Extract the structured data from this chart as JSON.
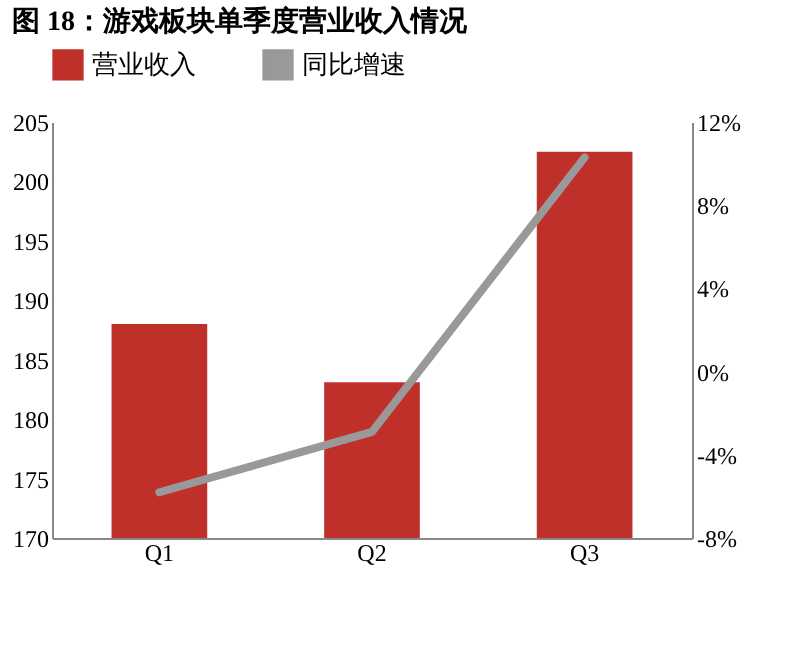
{
  "chart_data": {
    "type": "bar",
    "title": "图 18：游戏板块单季度营业收入情况",
    "categories": [
      "Q1",
      "Q2",
      "Q3"
    ],
    "series": [
      {
        "name": "营业收入",
        "type": "bar",
        "color": "#c0302b",
        "values": [
          188,
          183.1,
          202.5
        ]
      },
      {
        "name": "同比增速",
        "type": "line",
        "axis": "y2",
        "color": "#999999",
        "values": [
          -5.8,
          -2.9,
          10.3
        ]
      }
    ],
    "ylim": [
      170,
      205
    ],
    "yticks": [
      170,
      175,
      180,
      185,
      190,
      195,
      200,
      205
    ],
    "y2lim": [
      -8,
      12
    ],
    "y2ticks": [
      {
        "value": -8,
        "label": "-8%"
      },
      {
        "value": -4,
        "label": "-4%"
      },
      {
        "value": 0,
        "label": "0%"
      },
      {
        "value": 4,
        "label": "4%"
      },
      {
        "value": 8,
        "label": "8%"
      },
      {
        "value": 12,
        "label": "12%"
      }
    ],
    "legend": "top",
    "grid": false
  }
}
